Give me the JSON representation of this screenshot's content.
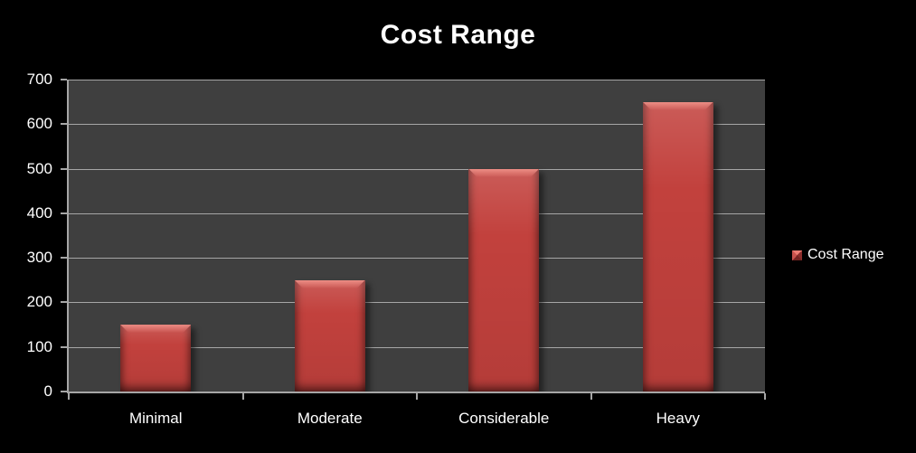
{
  "title": "Cost Range",
  "legend": {
    "label": "Cost Range"
  },
  "colors": {
    "background": "#000000",
    "plot_background": "#3F3F3F",
    "gridline": "#A6A6A6",
    "axis_line": "#A6A6A6",
    "text": "#FFFFFF",
    "bar_fill": "#C2413D",
    "bar_highlight": "#EC7C72",
    "bar_edge_dark": "#8C2E2C"
  },
  "chart_data": {
    "type": "bar",
    "title": "Cost Range",
    "categories": [
      "Minimal",
      "Moderate",
      "Considerable",
      "Heavy"
    ],
    "series": [
      {
        "name": "Cost Range",
        "values": [
          150,
          250,
          500,
          650
        ]
      }
    ],
    "xlabel": "",
    "ylabel": "",
    "ylim": [
      0,
      700
    ],
    "yticks": [
      0,
      100,
      200,
      300,
      400,
      500,
      600,
      700
    ],
    "grid": true,
    "legend_position": "right",
    "plot_background": "#3F3F3F",
    "bar_color": "#C2413D"
  }
}
